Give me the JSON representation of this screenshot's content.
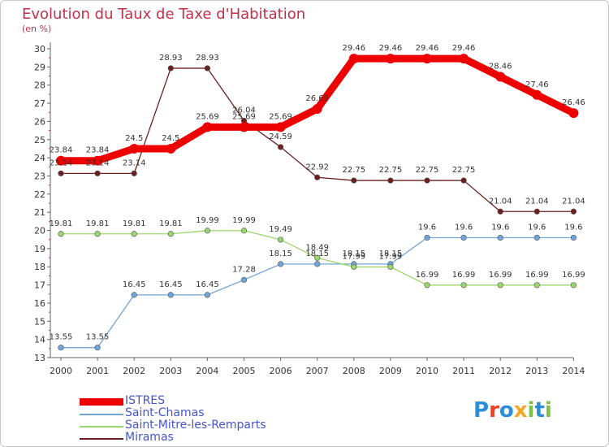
{
  "header": {
    "title": "Evolution du Taux de Taxe d'Habitation",
    "subtitle": "(en %)"
  },
  "brand": {
    "text": "Proxiti",
    "colors": [
      "#2b8fd8",
      "#e8432a",
      "#2b8fd8",
      "#f5a623",
      "#7cc242",
      "#2b8fd8",
      "#7cc242"
    ]
  },
  "chart_data": {
    "type": "line",
    "x": [
      2000,
      2001,
      2002,
      2003,
      2004,
      2005,
      2006,
      2007,
      2008,
      2009,
      2010,
      2011,
      2012,
      2013,
      2014
    ],
    "ylim": [
      13,
      30
    ],
    "yticks": [
      13,
      14,
      15,
      16,
      17,
      18,
      19,
      20,
      21,
      22,
      23,
      24,
      25,
      26,
      27,
      28,
      29,
      30
    ],
    "grid": false,
    "legend_position": "bottom-left",
    "series": [
      {
        "name": "ISTRES",
        "color": "#ee0000",
        "values": [
          23.84,
          23.84,
          24.5,
          24.5,
          25.69,
          25.69,
          25.69,
          26.69,
          29.46,
          29.46,
          29.46,
          29.46,
          28.46,
          27.46,
          26.46
        ],
        "labels": [
          "23.84",
          "23.84",
          "24.5",
          "24.5",
          "25.69",
          "25.69",
          "25.69",
          "26.69",
          "29.46",
          "29.46",
          "29.46",
          "29.46",
          "28.46",
          "27.46",
          "26.46"
        ]
      },
      {
        "name": "Saint-Chamas",
        "color": "#6fa5d8",
        "values": [
          13.55,
          13.55,
          16.45,
          16.45,
          16.45,
          17.28,
          18.15,
          18.15,
          18.15,
          18.15,
          19.6,
          19.6,
          19.6,
          19.6,
          19.6
        ],
        "labels": [
          "13.55",
          "13.55",
          "16.45",
          "16.45",
          "16.45",
          "17.28",
          "18.15",
          "18.15",
          "18.15",
          "18.15",
          "19.6",
          "19.6",
          "19.6",
          "19.6",
          "19.6"
        ]
      },
      {
        "name": "Saint-Mitre-les-Remparts",
        "color": "#9ad66e",
        "values": [
          19.81,
          19.81,
          19.81,
          19.81,
          19.99,
          19.99,
          19.49,
          18.49,
          17.99,
          17.99,
          16.99,
          16.99,
          16.99,
          16.99,
          16.99
        ],
        "labels": [
          "19.81",
          "19.81",
          "19.81",
          "19.81",
          "19.99",
          "19.99",
          "19.49",
          "18.49",
          "17.99",
          "17.99",
          "16.99",
          "16.99",
          "16.99",
          "16.99",
          "16.99"
        ]
      },
      {
        "name": "Miramas",
        "color": "#6b1f1f",
        "values": [
          23.14,
          23.14,
          23.14,
          28.93,
          28.93,
          26.04,
          24.59,
          22.92,
          22.75,
          22.75,
          22.75,
          22.75,
          21.04,
          21.04,
          21.04
        ],
        "labels": [
          "23.14",
          "23.14",
          "23.14",
          "28.93",
          "28.93",
          "26.04",
          "24.59",
          "22.92",
          "22.75",
          "22.75",
          "22.75",
          "22.75",
          "21.04",
          "21.04",
          "21.04"
        ]
      }
    ]
  }
}
